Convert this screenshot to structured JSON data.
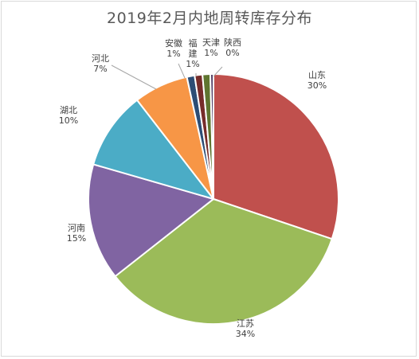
{
  "chart_data": {
    "type": "pie",
    "title": "2019年2月内地周转库存分布",
    "slices": [
      {
        "name": "山东",
        "label": "30%",
        "value": 30,
        "color": "#c0504d"
      },
      {
        "name": "江苏",
        "label": "34%",
        "value": 34,
        "color": "#9bbb59"
      },
      {
        "name": "河南",
        "label": "15%",
        "value": 15,
        "color": "#8064a2"
      },
      {
        "name": "湖北",
        "label": "10%",
        "value": 10,
        "color": "#4bacc6"
      },
      {
        "name": "河北",
        "label": "7%",
        "value": 7,
        "color": "#f79646"
      },
      {
        "name": "安徽",
        "label": "1%",
        "value": 1,
        "color": "#2c4d75"
      },
      {
        "name": "福建",
        "label": "1%",
        "value": 1,
        "color": "#772c2a"
      },
      {
        "name": "天津",
        "label": "1%",
        "value": 1,
        "color": "#5f7530"
      },
      {
        "name": "陕西",
        "label": "0%",
        "value": 0.4,
        "color": "#4d3b62"
      }
    ],
    "start_angle_deg": 0,
    "direction": "clockwise",
    "legend": "none",
    "data_labels": "category-name-and-percent-with-leader-lines"
  }
}
